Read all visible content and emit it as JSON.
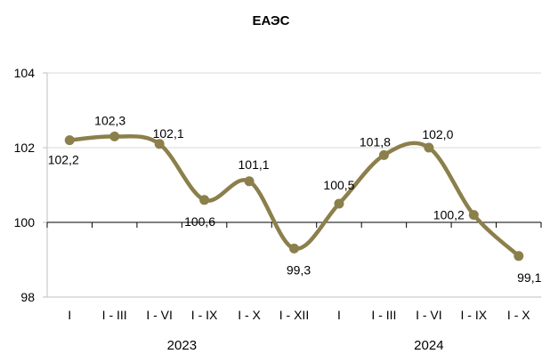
{
  "chart_data": {
    "type": "line",
    "title": "ЕАЭС",
    "xlabel": "",
    "ylabel": "",
    "ylim": [
      98,
      104
    ],
    "yticks": [
      "98",
      "100",
      "102",
      "104"
    ],
    "grid": "horizontal",
    "categories": [
      "I",
      "I - III",
      "I - VI",
      "I - IX",
      "I - X",
      "I - XII",
      "I",
      "I - III",
      "I - VI",
      "I - IX",
      "I - X"
    ],
    "groups": [
      {
        "label": "2023",
        "start": 0,
        "end": 5
      },
      {
        "label": "2024",
        "start": 6,
        "end": 10
      }
    ],
    "series": [
      {
        "values": [
          102.2,
          102.3,
          102.1,
          100.6,
          101.1,
          99.3,
          100.5,
          101.8,
          102.0,
          100.2,
          99.1
        ],
        "labels": [
          "102,2",
          "102,3",
          "102,1",
          "100,6",
          "101,1",
          "99,3",
          "100,5",
          "101,8",
          "102,0",
          "100,2",
          "99,1"
        ],
        "color": "#8b7f4b"
      }
    ],
    "axis_color": "#bfbfbf",
    "grid_color": "#d9d9d9"
  }
}
